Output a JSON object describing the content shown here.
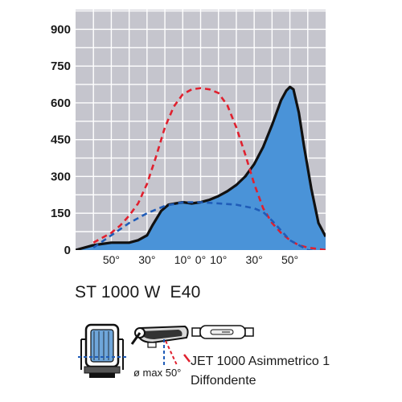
{
  "chart_data": {
    "type": "line",
    "y_ticks": [
      "900",
      "750",
      "600",
      "450",
      "300",
      "150",
      "0"
    ],
    "x_tick_labels": [
      "50°",
      "30°",
      "10°",
      "0°",
      "10°",
      "30°",
      "50°"
    ],
    "x_tick_values": [
      -50,
      -30,
      -10,
      0,
      10,
      30,
      50
    ],
    "xlim": [
      -70,
      70
    ],
    "ylim": [
      0,
      980
    ],
    "grid": true,
    "series": [
      {
        "style": "filled-area-solid-black-outline",
        "color": "#4a93d8",
        "x": [
          -70,
          -60,
          -50,
          -40,
          -35,
          -30,
          -27,
          -22,
          -18,
          -10,
          -5,
          0,
          5,
          10,
          15,
          20,
          25,
          30,
          35,
          40,
          45,
          48,
          50,
          52,
          55,
          58,
          62,
          66,
          70
        ],
        "y": [
          0,
          20,
          30,
          30,
          40,
          60,
          100,
          160,
          185,
          195,
          190,
          195,
          205,
          220,
          240,
          265,
          300,
          350,
          420,
          510,
          610,
          650,
          665,
          655,
          560,
          420,
          250,
          110,
          55
        ]
      },
      {
        "style": "dashed",
        "color": "#e0202e",
        "x": [
          -60,
          -50,
          -45,
          -40,
          -35,
          -30,
          -25,
          -20,
          -15,
          -10,
          -5,
          0,
          5,
          10,
          15,
          20,
          25,
          30,
          35,
          40,
          45,
          50,
          55,
          60,
          70
        ],
        "y": [
          30,
          70,
          100,
          140,
          190,
          270,
          380,
          500,
          585,
          635,
          655,
          660,
          655,
          640,
          590,
          500,
          390,
          270,
          170,
          110,
          70,
          40,
          20,
          10,
          0
        ]
      },
      {
        "style": "dashed",
        "color": "#1f5cb8",
        "x": [
          -60,
          -50,
          -40,
          -30,
          -20,
          -10,
          0,
          10,
          20,
          30,
          35,
          40,
          45,
          50,
          60,
          70
        ],
        "y": [
          10,
          60,
          110,
          150,
          180,
          195,
          195,
          190,
          185,
          170,
          155,
          120,
          80,
          40,
          0,
          -10
        ]
      }
    ]
  },
  "product": {
    "model": "ST 1000 W  E40",
    "optic_name": "JET 1000 Asimmetrico 1",
    "optic_type": "Diffondente",
    "angle_note": "ø max 50°"
  },
  "icons": [
    "floodlight-front-icon",
    "floodlight-tilted-icon",
    "lamp-tube-icon"
  ],
  "colors": {
    "plot_bg": "#c5c5cd",
    "grid": "#ffffff",
    "area": "#4a93d8",
    "outline": "#111111",
    "red": "#e0202e",
    "blue": "#1f5cb8"
  }
}
